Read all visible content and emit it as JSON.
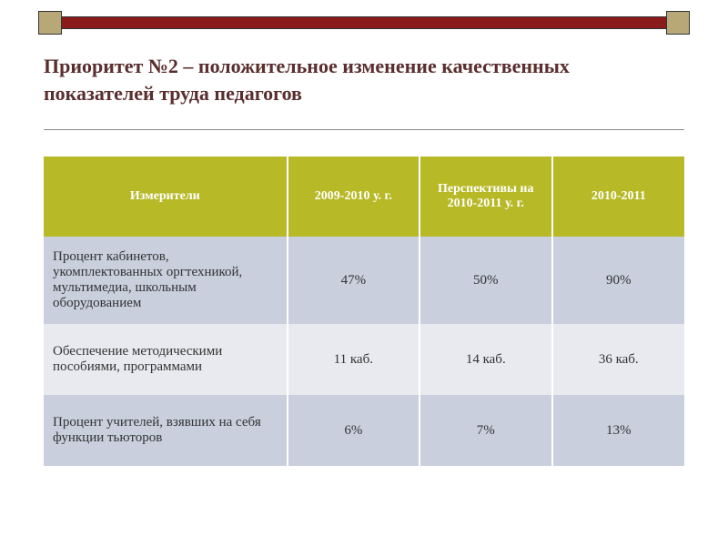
{
  "title": "Приоритет №2 – положительное изменение качественных показателей труда педагогов",
  "table": {
    "type": "table",
    "header_bg": "#b7b927",
    "header_text_color": "#ffffff",
    "row_colors": [
      "#c9cfdd",
      "#e8eaef",
      "#c9cfdd"
    ],
    "title_color": "#5a2e2e",
    "columns": [
      "Измерители",
      "2009-2010 у. г.",
      "Перспективы на 2010-2011 у. г.",
      "2010-2011"
    ],
    "rows": [
      {
        "label": "Процент кабинетов, укомплектованных оргтехникой, мультимедиа, школьным оборудованием",
        "v1": "47%",
        "v2": "50%",
        "v3": "90%"
      },
      {
        "label": "Обеспечение методическими пособиями, программами",
        "v1": "11 каб.",
        "v2": "14 каб.",
        "v3": "36 каб."
      },
      {
        "label": "Процент учителей, взявших на себя функции тьюторов",
        "v1": "6%",
        "v2": "7%",
        "v3": "13%"
      }
    ]
  },
  "decor": {
    "bar_color": "#8b1a1a",
    "square_color": "#b8a878"
  }
}
